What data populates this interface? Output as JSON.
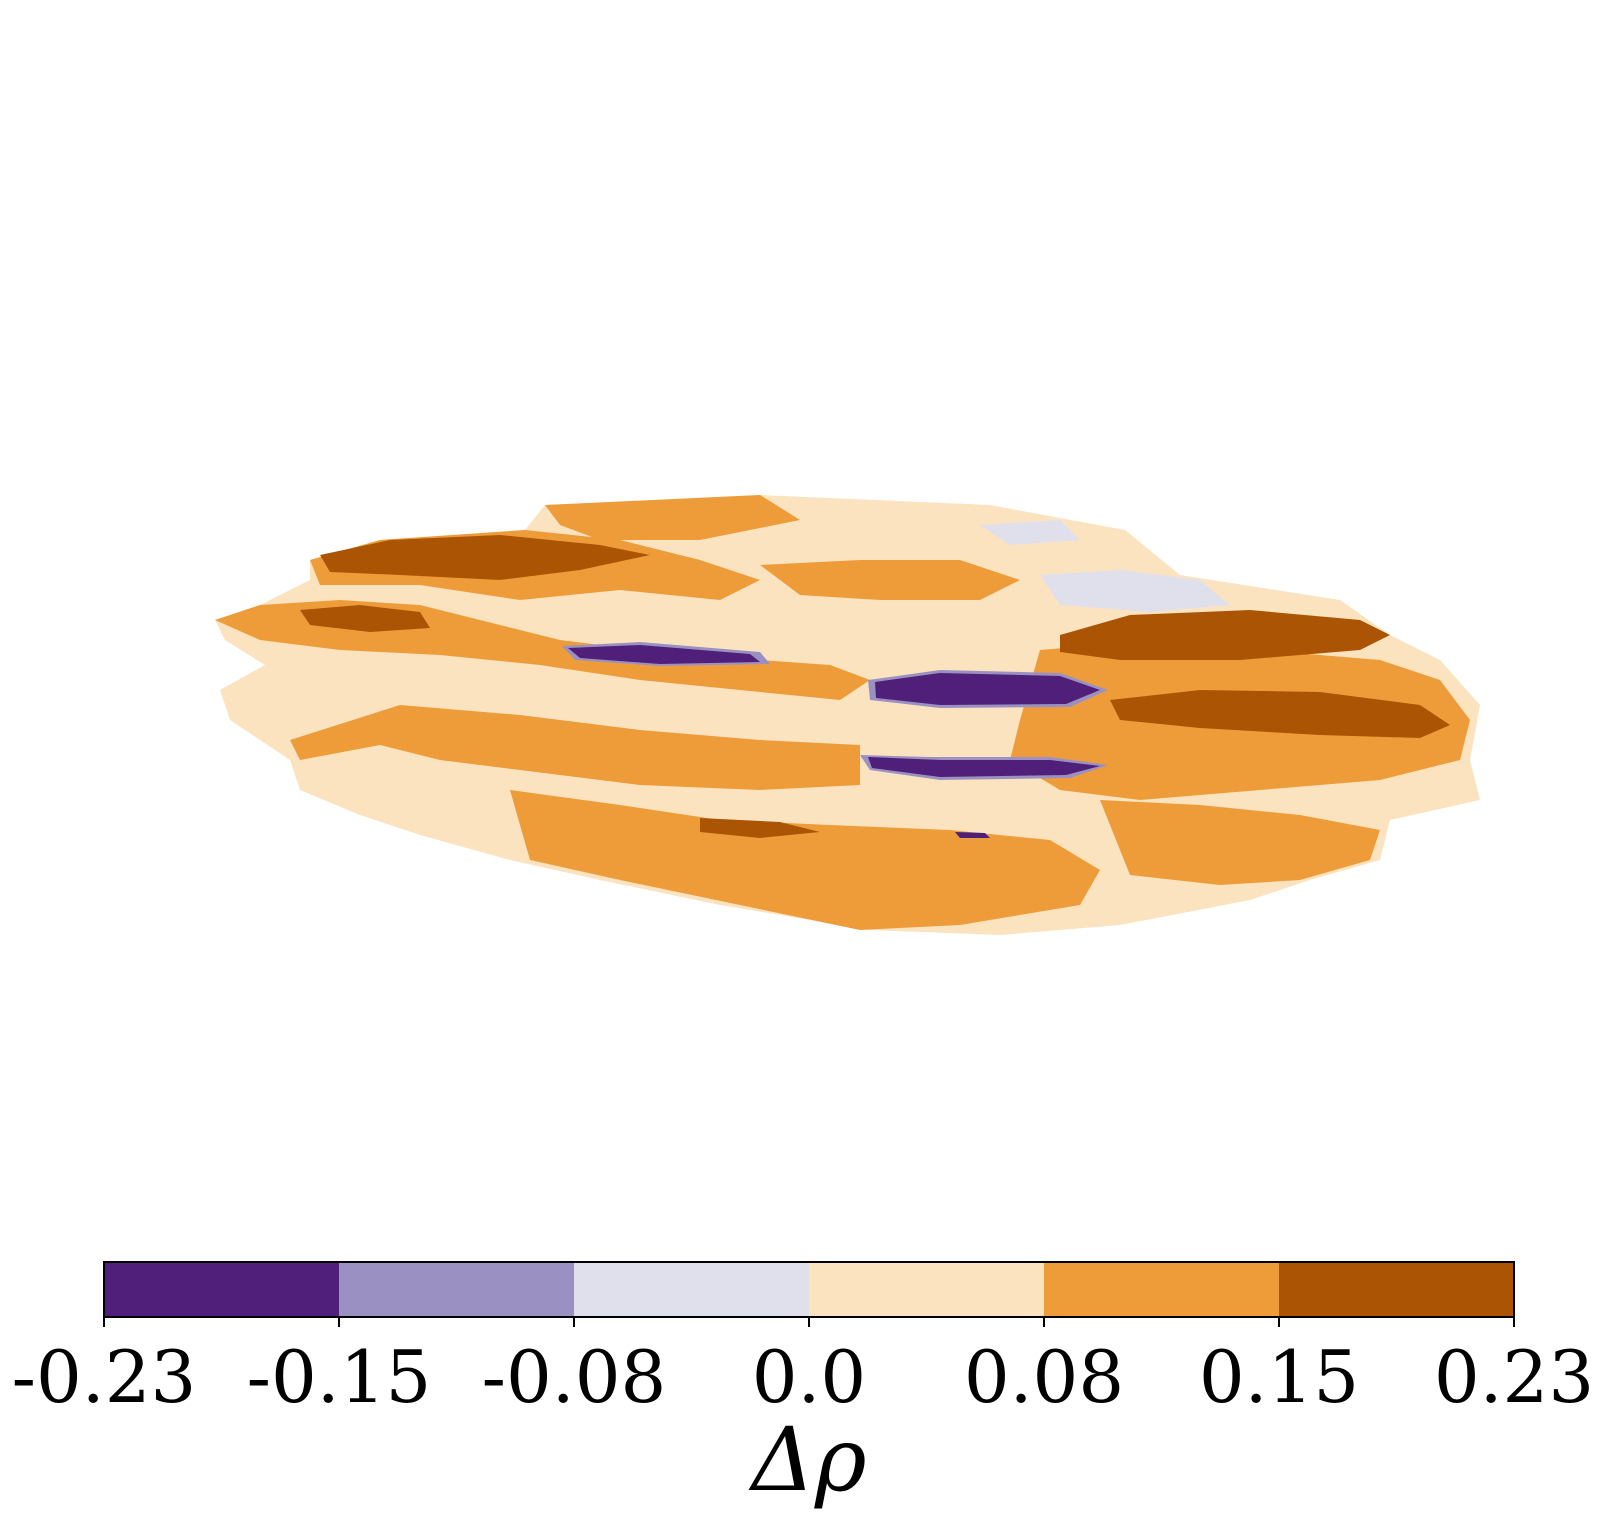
{
  "chart_data": {
    "type": "heatmap",
    "title": "",
    "xlabel": "",
    "ylabel": "",
    "colorbar": {
      "label": "Δρ",
      "ticks": [
        "-0.23",
        "-0.15",
        "-0.08",
        "0.0",
        "0.08",
        "0.15",
        "0.23"
      ],
      "range": [
        -0.23,
        0.23
      ],
      "levels": [
        {
          "lo": -0.23,
          "hi": -0.15,
          "color": "#4f1f7a"
        },
        {
          "lo": -0.15,
          "hi": -0.08,
          "color": "#9a91c2"
        },
        {
          "lo": -0.08,
          "hi": 0.0,
          "color": "#dfe0ec"
        },
        {
          "lo": 0.0,
          "hi": 0.08,
          "color": "#fbe3bf"
        },
        {
          "lo": 0.08,
          "hi": 0.15,
          "color": "#ee9c3a"
        },
        {
          "lo": 0.15,
          "hi": 0.23,
          "color": "#ab5504"
        }
      ]
    },
    "field": {
      "description_levels": "ellipsoidal surface map of Δρ, mostly in the 0.0–0.15 range with patches near 0.15–0.23 and a few pockets below -0.15",
      "dominant_range": [
        0.0,
        0.15
      ],
      "max_level": 0.23,
      "min_level": -0.23
    },
    "grid": false
  }
}
